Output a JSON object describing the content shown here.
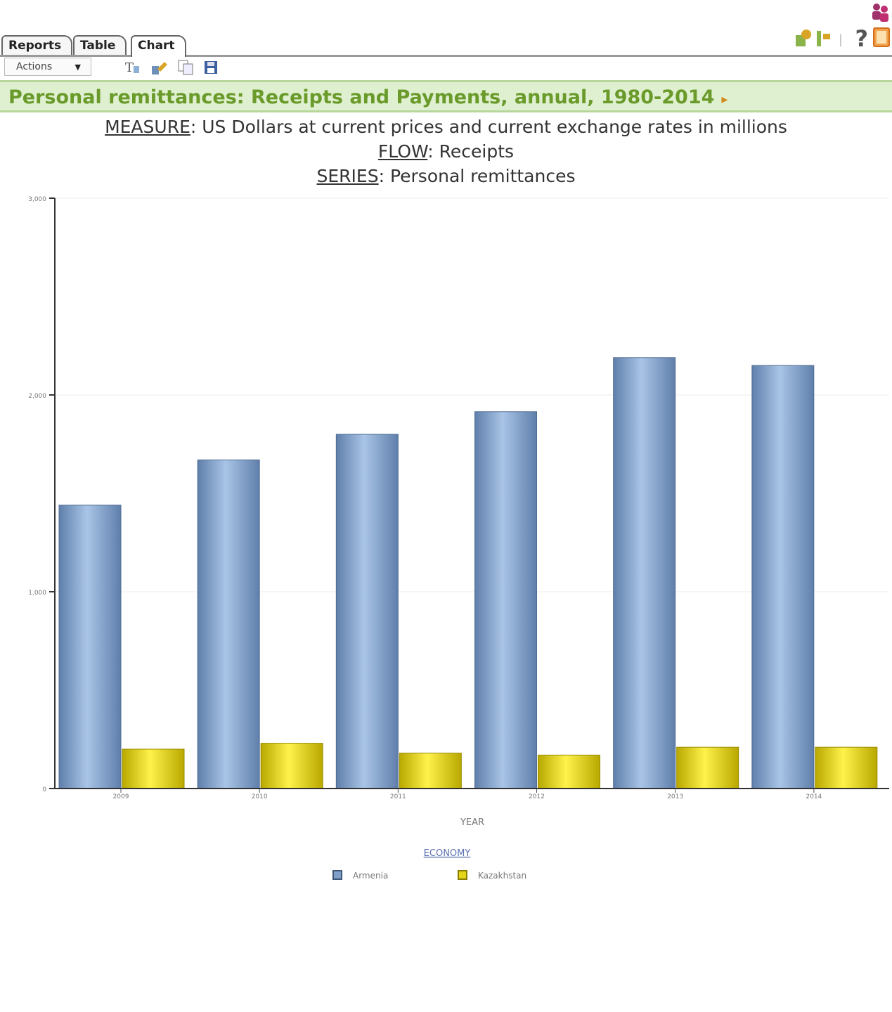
{
  "tabs": [
    {
      "label": "Reports",
      "active": false
    },
    {
      "label": "Table",
      "active": false
    },
    {
      "label": "Chart",
      "active": true
    }
  ],
  "toolbar": {
    "actions_label": "Actions",
    "icons": [
      "text-format-icon",
      "edit-chart-icon",
      "copy-icon",
      "save-icon"
    ]
  },
  "top_icons": [
    "people-icon",
    "settings-icon",
    "export-icon",
    "help-icon",
    "close-icon"
  ],
  "help_glyph": "?",
  "report": {
    "title": "Personal remittances: Receipts and Payments, annual, 1980-2014",
    "indicator": "▸",
    "measure_key": "MEASURE",
    "measure_value": ": US Dollars at current prices and current exchange rates in millions",
    "flow_key": "FLOW",
    "flow_value": ": Receipts",
    "series_key": "SERIES",
    "series_value": ": Personal remittances"
  },
  "colors": {
    "armenia": "#7f9ec8",
    "kazakhstan": "#e4d41a",
    "title_green": "#6a9a2a"
  },
  "chart_data": {
    "type": "bar",
    "categories": [
      "2009",
      "2010",
      "2011",
      "2012",
      "2013",
      "2014"
    ],
    "series": [
      {
        "name": "Armenia",
        "values": [
          1440,
          1670,
          1800,
          1915,
          2190,
          2150
        ]
      },
      {
        "name": "Kazakhstan",
        "values": [
          200,
          230,
          180,
          170,
          210,
          210
        ]
      }
    ],
    "y_ticks": [
      "0",
      "1,000",
      "2,000",
      "3,000"
    ],
    "ylim": [
      0,
      3000
    ],
    "xlabel": "YEAR",
    "legend_title": "ECONOMY",
    "legend_position": "bottom",
    "grid": true
  }
}
